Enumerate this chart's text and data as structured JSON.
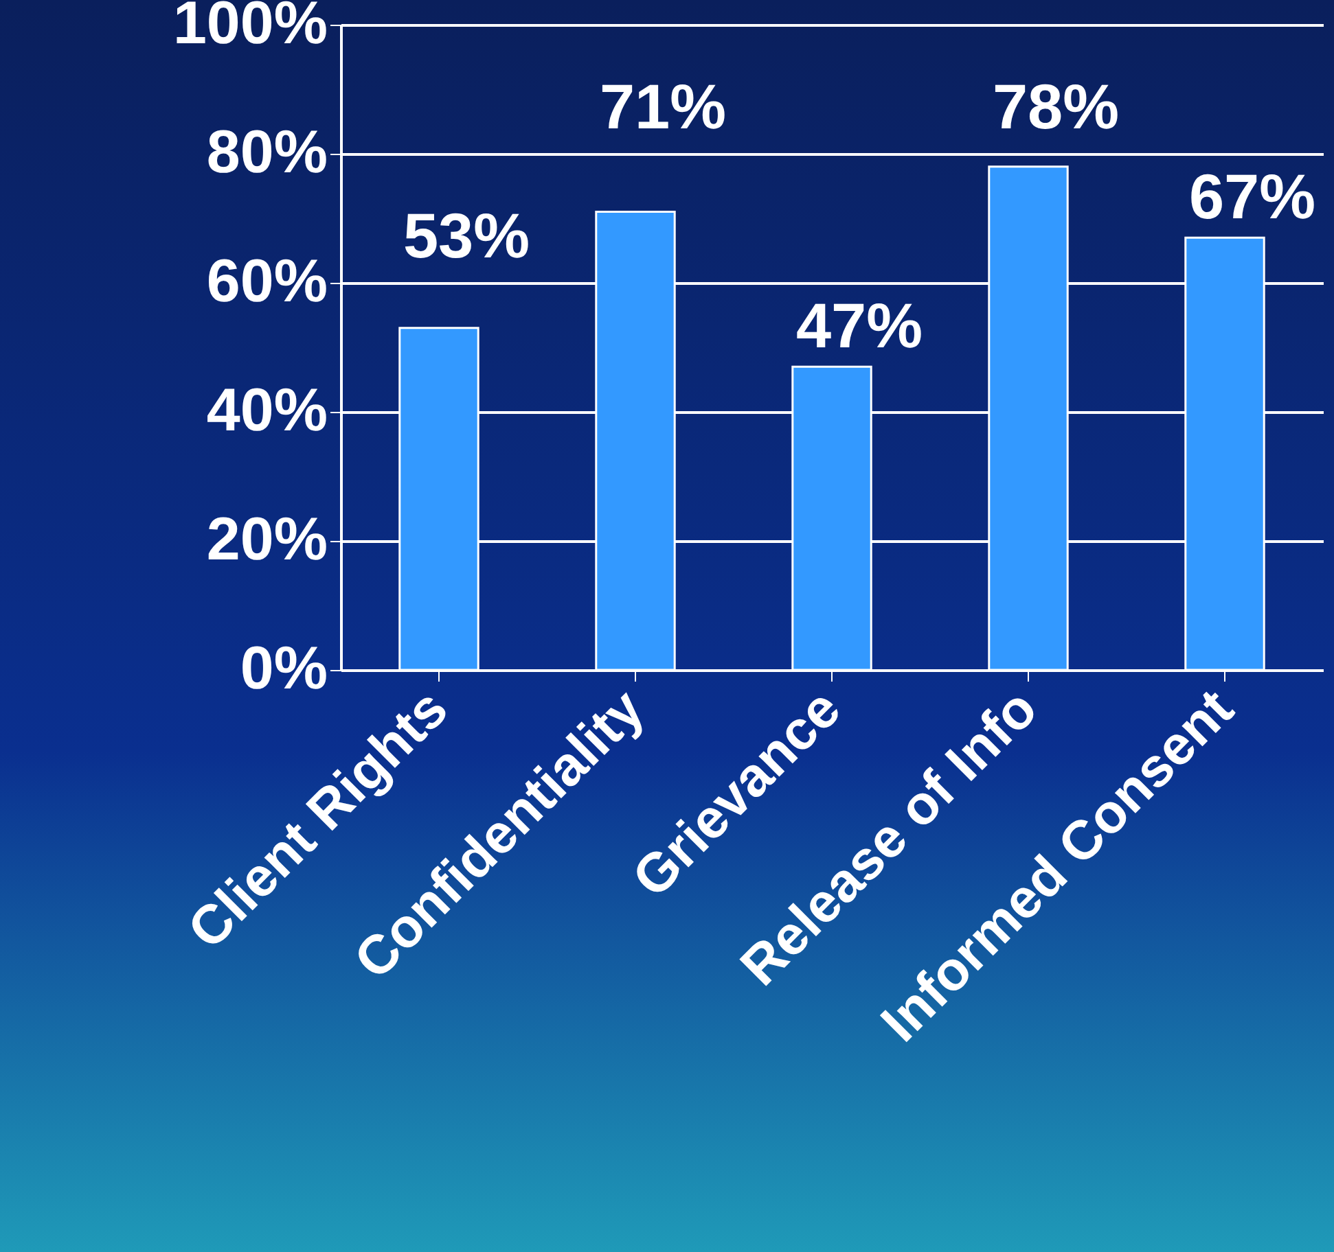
{
  "chart_data": {
    "type": "bar",
    "categories": [
      "Client Rights",
      "Confidentiality",
      "Grievance",
      "Release of Info",
      "Informed Consent"
    ],
    "values": [
      53,
      71,
      47,
      78,
      67
    ],
    "color": "#3399ff",
    "value_labels": [
      "53%",
      "71%",
      "47%",
      "78%",
      "67%"
    ],
    "ylim": [
      0,
      100
    ],
    "yticks": [
      {
        "value": 0,
        "label": "0%"
      },
      {
        "value": 20,
        "label": "20%"
      },
      {
        "value": 40,
        "label": "40%"
      },
      {
        "value": 60,
        "label": "60%"
      },
      {
        "value": 80,
        "label": "80%"
      },
      {
        "value": 100,
        "label": "100%"
      }
    ],
    "grid": "y"
  }
}
